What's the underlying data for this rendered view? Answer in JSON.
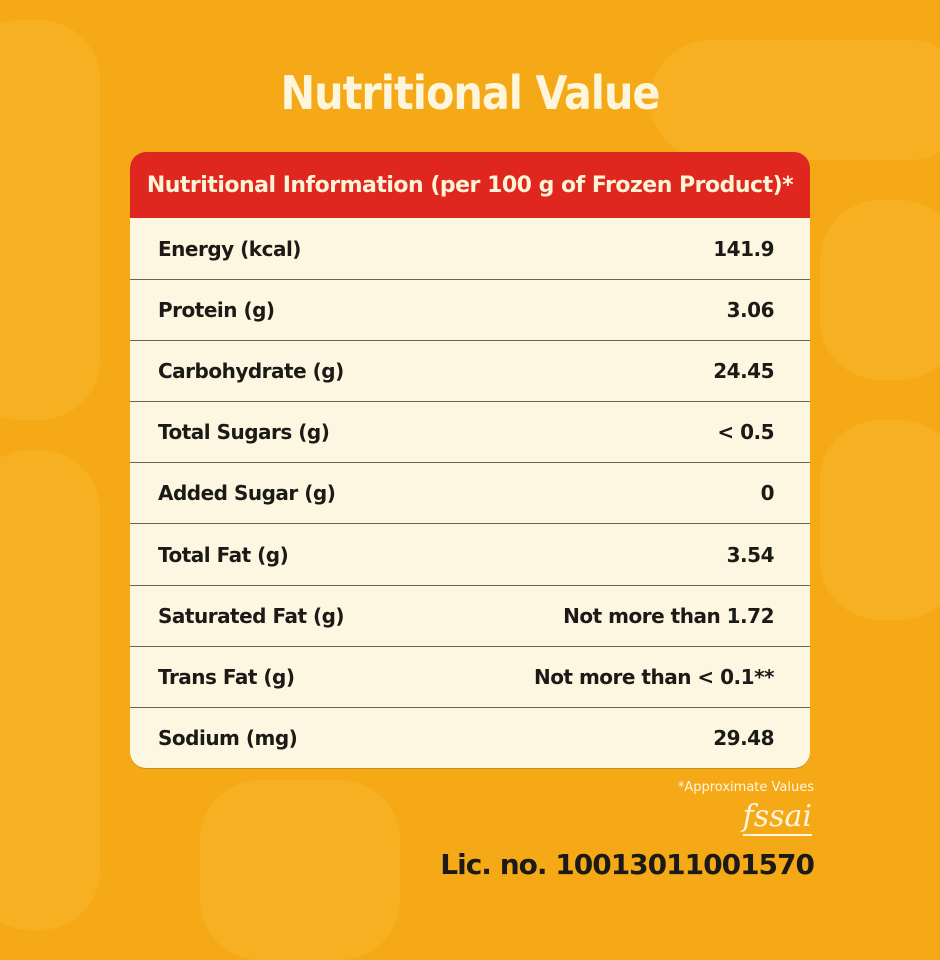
{
  "title": "Nutritional Value",
  "table": {
    "header": "Nutritional Information (per 100 g of Frozen Product)*",
    "rows": [
      {
        "label": "Energy (kcal)",
        "value": "141.9"
      },
      {
        "label": "Protein (g)",
        "value": "3.06"
      },
      {
        "label": "Carbohydrate (g)",
        "value": "24.45"
      },
      {
        "label": "Total Sugars (g)",
        "value": "< 0.5"
      },
      {
        "label": "Added Sugar (g)",
        "value": "0"
      },
      {
        "label": "Total Fat (g)",
        "value": "3.54"
      },
      {
        "label": "Saturated Fat (g)",
        "value": "Not more than 1.72"
      },
      {
        "label": "Trans Fat (g)",
        "value": "Not more than < 0.1**"
      },
      {
        "label": "Sodium (mg)",
        "value": "29.48"
      }
    ]
  },
  "footnote": "*Approximate Values",
  "logo": "fssai",
  "license": "Lic. no. 10013011001570",
  "colors": {
    "background": "#f5a916",
    "header": "#e0271f",
    "card": "#fdf7e1"
  }
}
